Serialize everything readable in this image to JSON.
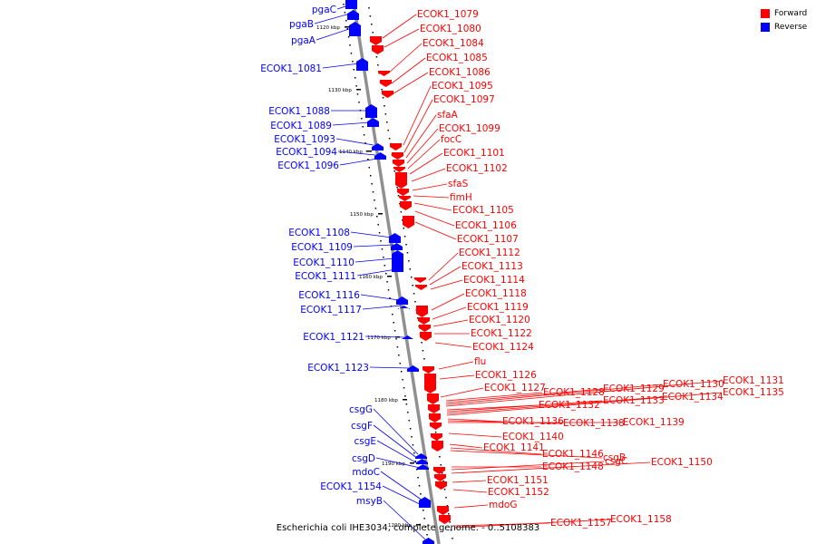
{
  "legend": {
    "forward_label": "Forward",
    "reverse_label": "Reverse",
    "forward_color": "#ff0000",
    "reverse_color": "#0000ff"
  },
  "caption": "Escherichia coli IHE3034, complete genome. - 0..5108383",
  "ticks": [
    "1120 kbp",
    "1130 kbp",
    "1140 kbp",
    "1150 kbp",
    "1160 kbp",
    "1170 kbp",
    "1180 kbp",
    "1190 kbp",
    "1200 kbp"
  ],
  "reverse_labels": [
    "pgaC",
    "pgaB",
    "pgaA",
    "ECOK1_1081",
    "ECOK1_1088",
    "ECOK1_1089",
    "ECOK1_1093",
    "ECOK1_1094",
    "ECOK1_1096",
    "ECOK1_1108",
    "ECOK1_1109",
    "ECOK1_1110",
    "ECOK1_1111",
    "ECOK1_1116",
    "ECOK1_1117",
    "ECOK1_1121",
    "ECOK1_1123",
    "csgG",
    "csgF",
    "csgE",
    "csgD",
    "mdoC",
    "ECOK1_1154",
    "msyB"
  ],
  "forward_labels": [
    "ECOK1_1079",
    "ECOK1_1080",
    "ECOK1_1084",
    "ECOK1_1085",
    "ECOK1_1086",
    "ECOK1_1095",
    "ECOK1_1097",
    "sfaA",
    "ECOK1_1099",
    "focC",
    "ECOK1_1101",
    "ECOK1_1102",
    "sfaS",
    "fimH",
    "ECOK1_1105",
    "ECOK1_1106",
    "ECOK1_1107",
    "ECOK1_1112",
    "ECOK1_1113",
    "ECOK1_1114",
    "ECOK1_1118",
    "ECOK1_1119",
    "ECOK1_1120",
    "ECOK1_1122",
    "ECOK1_1124",
    "flu",
    "ECOK1_1126",
    "ECOK1_1127",
    "ECOK1_1128",
    "ECOK1_1129",
    "ECOK1_1130",
    "ECOK1_1131",
    "ECOK1_1132",
    "ECOK1_1133",
    "ECOK1_1134",
    "ECOK1_1135",
    "ECOK1_1136",
    "ECOK1_1138",
    "ECOK1_1139",
    "ECOK1_1140",
    "ECOK1_1141",
    "ECOK1_1146",
    "csgB",
    "ECOK1_1148",
    "csgC",
    "ECOK1_1150",
    "ECOK1_1151",
    "ECOK1_1152",
    "mdoG",
    "ECOK1_1157",
    "ECOK1_1158"
  ]
}
